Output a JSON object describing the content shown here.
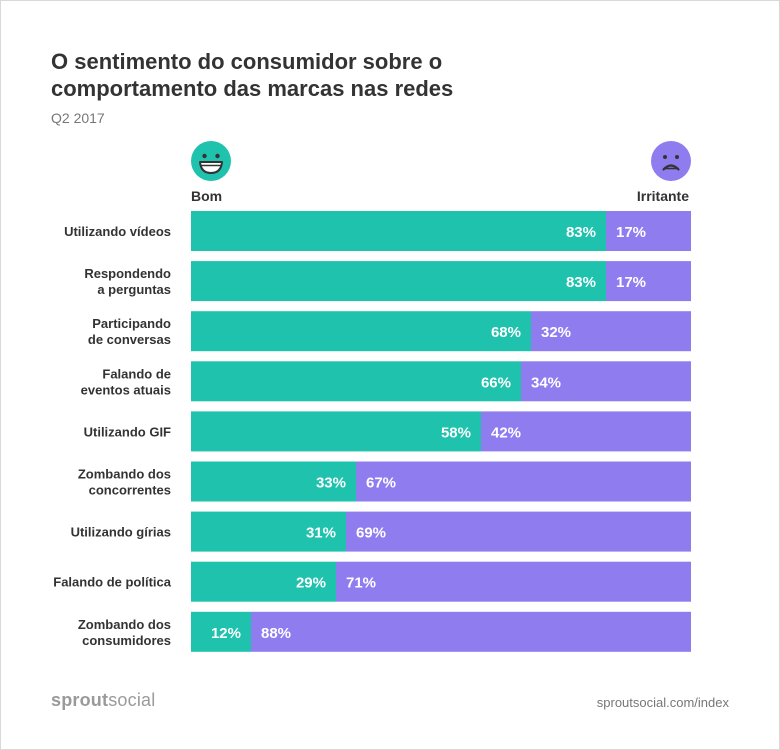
{
  "header": {
    "title": "O sentimento do consumidor sobre o comportamento das marcas nas redes",
    "subtitle": "Q2 2017"
  },
  "legend": {
    "positive_label": "Bom",
    "negative_label": "Irritante",
    "positive_icon": "smiley-face-icon",
    "negative_icon": "frown-face-icon"
  },
  "colors": {
    "positive": "#1ec2ad",
    "negative": "#8f7df0",
    "label_text": "#333333",
    "value_text": "#ffffff"
  },
  "chart_data": {
    "type": "bar",
    "orientation": "horizontal",
    "stacked": true,
    "percent_suffix": "%",
    "categories": [
      [
        "Utilizando vídeos"
      ],
      [
        "Respondendo",
        "a perguntas"
      ],
      [
        "Participando",
        "de conversas"
      ],
      [
        "Falando de",
        "eventos atuais"
      ],
      [
        "Utilizando GIF"
      ],
      [
        "Zombando dos",
        "concorrentes"
      ],
      [
        "Utilizando gírias"
      ],
      [
        "Falando de política"
      ],
      [
        "Zombando dos",
        "consumidores"
      ]
    ],
    "series": [
      {
        "name": "Bom",
        "values": [
          83,
          83,
          68,
          66,
          58,
          33,
          31,
          29,
          12
        ]
      },
      {
        "name": "Irritante",
        "values": [
          17,
          17,
          32,
          34,
          42,
          67,
          69,
          71,
          88
        ]
      }
    ],
    "xlim": [
      0,
      100
    ],
    "grid": false,
    "legend_placement": "top"
  },
  "footer": {
    "brand_bold": "sprout",
    "brand_light": "social",
    "url": "sproutsocial.com/index"
  }
}
